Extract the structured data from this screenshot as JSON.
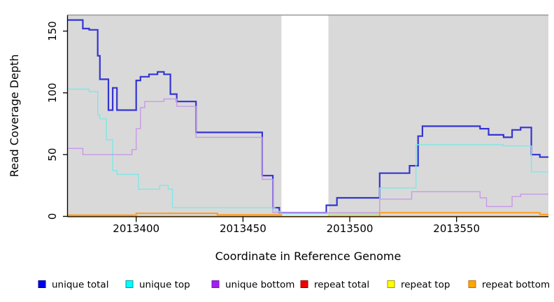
{
  "chart_data": {
    "type": "line",
    "title": "",
    "xlabel": "Coordinate in Reference Genome",
    "ylabel": "Read Coverage Depth",
    "xlim": [
      2013368,
      2013593
    ],
    "ylim": [
      0,
      163
    ],
    "x_ticks": [
      2013400,
      2013450,
      2013500,
      2013550
    ],
    "y_ticks": [
      0,
      50,
      100,
      150
    ],
    "grid": false,
    "legend_position": "bottom",
    "step": true,
    "plot_bg": "#d9d9d9",
    "top_border_color": "#999999",
    "axis_color": "#000000",
    "masked_region": {
      "x_start": 2013468,
      "x_end": 2013490,
      "color": "#ffffff"
    },
    "series": [
      {
        "name": "unique total",
        "color": "#3434d4",
        "legend_fill": "#0000ee",
        "legend_stroke": "#000099",
        "width": 2.2,
        "opacity": 1,
        "points": [
          [
            2013368,
            159
          ],
          [
            2013375,
            152
          ],
          [
            2013378,
            151
          ],
          [
            2013382,
            130
          ],
          [
            2013383,
            111
          ],
          [
            2013387,
            86
          ],
          [
            2013389,
            104
          ],
          [
            2013391,
            86
          ],
          [
            2013400,
            110
          ],
          [
            2013402,
            113
          ],
          [
            2013406,
            115
          ],
          [
            2013410,
            117
          ],
          [
            2013413,
            115
          ],
          [
            2013416,
            99
          ],
          [
            2013419,
            93
          ],
          [
            2013428,
            68
          ],
          [
            2013459,
            33
          ],
          [
            2013464,
            7
          ],
          [
            2013467,
            3
          ],
          [
            2013489,
            9
          ],
          [
            2013494,
            15
          ],
          [
            2013514,
            35
          ],
          [
            2013528,
            41
          ],
          [
            2013532,
            65
          ],
          [
            2013534,
            73
          ],
          [
            2013561,
            71
          ],
          [
            2013565,
            66
          ],
          [
            2013572,
            64
          ],
          [
            2013576,
            70
          ],
          [
            2013580,
            72
          ],
          [
            2013585,
            50
          ],
          [
            2013589,
            48
          ]
        ]
      },
      {
        "name": "unique top",
        "color": "#7fe7e7",
        "legend_fill": "#00ffff",
        "legend_stroke": "#009999",
        "width": 1.4,
        "opacity": 1,
        "points": [
          [
            2013368,
            103
          ],
          [
            2013378,
            101
          ],
          [
            2013382,
            82
          ],
          [
            2013383,
            79
          ],
          [
            2013386,
            62
          ],
          [
            2013389,
            37
          ],
          [
            2013391,
            34
          ],
          [
            2013401,
            22
          ],
          [
            2013411,
            25
          ],
          [
            2013415,
            22
          ],
          [
            2013417,
            7
          ],
          [
            2013465,
            4
          ],
          [
            2013468,
            2
          ],
          [
            2013514,
            23
          ],
          [
            2013531,
            58
          ],
          [
            2013572,
            57
          ],
          [
            2013585,
            36
          ]
        ]
      },
      {
        "name": "unique bottom",
        "color": "#c79ae6",
        "legend_fill": "#a020f0",
        "legend_stroke": "#7716b8",
        "width": 1.4,
        "opacity": 1,
        "points": [
          [
            2013368,
            55
          ],
          [
            2013375,
            50
          ],
          [
            2013398,
            54
          ],
          [
            2013400,
            71
          ],
          [
            2013402,
            88
          ],
          [
            2013404,
            93
          ],
          [
            2013413,
            95
          ],
          [
            2013419,
            89
          ],
          [
            2013428,
            64
          ],
          [
            2013459,
            30
          ],
          [
            2013464,
            3
          ],
          [
            2013514,
            14
          ],
          [
            2013529,
            20
          ],
          [
            2013561,
            15
          ],
          [
            2013564,
            8
          ],
          [
            2013576,
            16
          ],
          [
            2013580,
            18
          ]
        ]
      },
      {
        "name": "repeat total",
        "color": "#dd2222",
        "legend_fill": "#ee0000",
        "legend_stroke": "#990000",
        "width": 1.2,
        "opacity": 1,
        "points": [
          [
            2013368,
            0
          ]
        ]
      },
      {
        "name": "repeat top",
        "color": "#e8e800",
        "legend_fill": "#ffff00",
        "legend_stroke": "#999900",
        "width": 1.4,
        "opacity": 0.55,
        "points": [
          [
            2013368,
            0
          ],
          [
            2013490,
            2
          ],
          [
            2013514,
            0
          ]
        ]
      },
      {
        "name": "repeat bottom",
        "color": "#ff9d1e",
        "legend_fill": "#ffa500",
        "legend_stroke": "#b87400",
        "width": 2,
        "opacity": 1,
        "points": [
          [
            2013368,
            1
          ],
          [
            2013400,
            2.5
          ],
          [
            2013438,
            1.2
          ],
          [
            2013468,
            0
          ],
          [
            2013514,
            3
          ],
          [
            2013589,
            1.5
          ]
        ]
      }
    ]
  }
}
